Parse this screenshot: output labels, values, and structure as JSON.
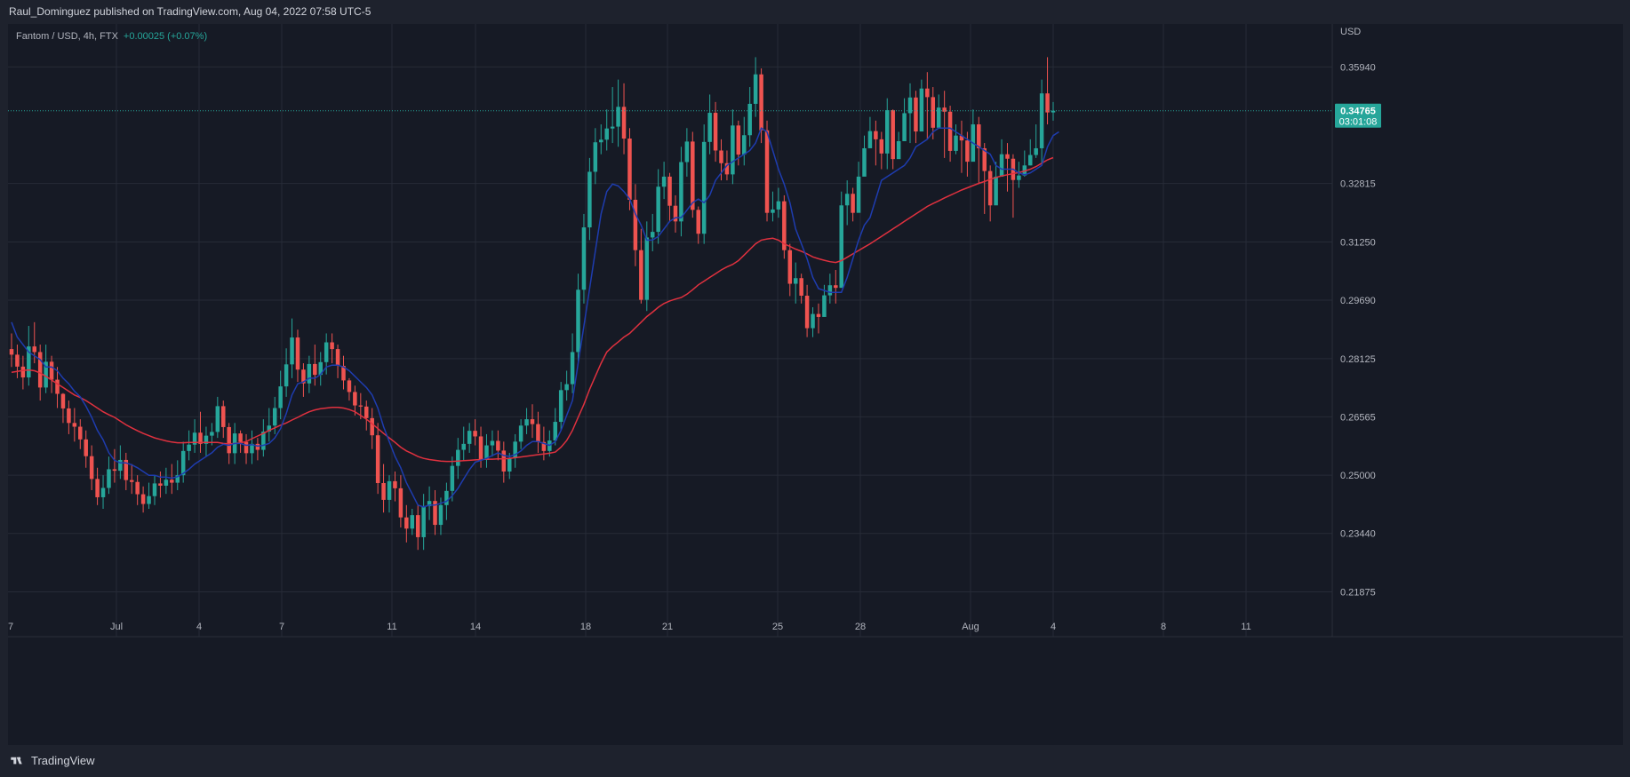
{
  "header": {
    "publisher_text": "Raul_Dominguez published on TradingView.com, Aug 04, 2022 07:58 UTC-5"
  },
  "legend": {
    "symbol": "Fantom / USD, 4h, FTX",
    "change": "+0.00025 (+0.07%)"
  },
  "footer": {
    "brand": "TradingView"
  },
  "colors": {
    "up": "#26a69a",
    "down": "#ef5350",
    "ema_fast": "#1e3caf",
    "ema_slow": "#e0313f",
    "background": "#161a25",
    "grid": "#262b37"
  },
  "chart_data": {
    "type": "candlestick",
    "currency_label": "USD",
    "ylim": [
      0.2134,
      0.3709
    ],
    "y_ticks": [
      "0.35940",
      "0.32815",
      "0.31250",
      "0.29690",
      "0.28125",
      "0.26565",
      "0.25000",
      "0.23440",
      "0.21875"
    ],
    "x_ticks": [
      "7",
      "Jul",
      "4",
      "7",
      "11",
      "14",
      "18",
      "21",
      "25",
      "28",
      "Aug",
      "4",
      "8",
      "11"
    ],
    "last_price": {
      "value": 0.34765,
      "label": "0.34765",
      "countdown": "03:01:08"
    },
    "candles": {
      "open": [
        0.2838,
        0.2823,
        0.2791,
        0.2762,
        0.2845,
        0.283,
        0.2735,
        0.2804,
        0.2756,
        0.2718,
        0.2679,
        0.264,
        0.263,
        0.2596,
        0.2551,
        0.249,
        0.2441,
        0.2466,
        0.2516,
        0.2512,
        0.2541,
        0.2487,
        0.2482,
        0.2449,
        0.2423,
        0.2444,
        0.2478,
        0.2472,
        0.2488,
        0.248,
        0.25,
        0.2565,
        0.2582,
        0.2614,
        0.2584,
        0.2606,
        0.2616,
        0.2685,
        0.2629,
        0.2559,
        0.2612,
        0.2589,
        0.2559,
        0.2584,
        0.2568,
        0.2617,
        0.2633,
        0.268,
        0.2738,
        0.2797,
        0.2869,
        0.2783,
        0.2746,
        0.2798,
        0.2769,
        0.2803,
        0.2856,
        0.2838,
        0.2793,
        0.2754,
        0.2723,
        0.2687,
        0.2684,
        0.2653,
        0.2607,
        0.2479,
        0.2434,
        0.2484,
        0.2465,
        0.2387,
        0.2357,
        0.2393,
        0.2334,
        0.2417,
        0.2431,
        0.2367,
        0.242,
        0.2458,
        0.2525,
        0.2568,
        0.2584,
        0.2619,
        0.2604,
        0.2541,
        0.258,
        0.2592,
        0.2566,
        0.251,
        0.2546,
        0.259,
        0.2633,
        0.265,
        0.2637,
        0.2589,
        0.2565,
        0.2593,
        0.2643,
        0.2728,
        0.2744,
        0.283,
        0.2997,
        0.3164,
        0.3313,
        0.3392,
        0.3399,
        0.3429,
        0.3434,
        0.3487,
        0.3402,
        0.3238,
        0.3103,
        0.297,
        0.3137,
        0.3152,
        0.3273,
        0.33,
        0.3222,
        0.318,
        0.3339,
        0.3394,
        0.3211,
        0.3147,
        0.3393,
        0.3471,
        0.337,
        0.3336,
        0.3306,
        0.3437,
        0.3359,
        0.3411,
        0.3495,
        0.3574,
        0.3424,
        0.3203,
        0.3212,
        0.3234,
        0.3103,
        0.3013,
        0.3028,
        0.2981,
        0.2894,
        0.2932,
        0.2924,
        0.2982,
        0.3009,
        0.3002,
        0.3223,
        0.3254,
        0.3203,
        0.33,
        0.3376,
        0.3422,
        0.34,
        0.3362,
        0.3478,
        0.3347,
        0.3395,
        0.347,
        0.3512,
        0.3421,
        0.3536,
        0.3513,
        0.3431,
        0.3485,
        0.3474,
        0.3369,
        0.341,
        0.3397,
        0.334,
        0.344,
        0.3376,
        0.3315,
        0.3223,
        0.33,
        0.336,
        0.3348,
        0.3291,
        0.3303,
        0.333,
        0.3358,
        0.3376,
        0.3523,
        0.3472
      ],
      "close": [
        0.2823,
        0.2791,
        0.2762,
        0.2845,
        0.283,
        0.2735,
        0.2804,
        0.2756,
        0.2718,
        0.2679,
        0.264,
        0.263,
        0.2596,
        0.2551,
        0.249,
        0.2441,
        0.2466,
        0.2516,
        0.2512,
        0.2541,
        0.2487,
        0.2482,
        0.2449,
        0.2423,
        0.2444,
        0.2478,
        0.2472,
        0.2488,
        0.248,
        0.25,
        0.2565,
        0.2582,
        0.2614,
        0.2584,
        0.2606,
        0.2616,
        0.2685,
        0.2629,
        0.2559,
        0.2612,
        0.2589,
        0.2559,
        0.2584,
        0.2568,
        0.2617,
        0.2633,
        0.268,
        0.2738,
        0.2797,
        0.2869,
        0.2783,
        0.2746,
        0.2798,
        0.2769,
        0.2803,
        0.2856,
        0.2838,
        0.2793,
        0.2754,
        0.2723,
        0.2687,
        0.2684,
        0.2653,
        0.2607,
        0.2479,
        0.2434,
        0.2484,
        0.2465,
        0.2387,
        0.2357,
        0.2393,
        0.2334,
        0.2417,
        0.2431,
        0.2367,
        0.242,
        0.2458,
        0.2525,
        0.2568,
        0.2584,
        0.2619,
        0.2604,
        0.2541,
        0.258,
        0.2592,
        0.2566,
        0.251,
        0.2546,
        0.259,
        0.2633,
        0.265,
        0.2637,
        0.2589,
        0.2565,
        0.2593,
        0.2643,
        0.2728,
        0.2744,
        0.283,
        0.2997,
        0.3164,
        0.3313,
        0.3392,
        0.3399,
        0.3429,
        0.3434,
        0.3487,
        0.3402,
        0.3238,
        0.3103,
        0.297,
        0.3137,
        0.3152,
        0.3273,
        0.33,
        0.3222,
        0.318,
        0.3339,
        0.3394,
        0.3211,
        0.3147,
        0.3393,
        0.3471,
        0.337,
        0.3336,
        0.3306,
        0.3437,
        0.3359,
        0.3411,
        0.3495,
        0.3574,
        0.3424,
        0.3203,
        0.3212,
        0.3234,
        0.3103,
        0.3013,
        0.3028,
        0.2981,
        0.2894,
        0.2932,
        0.2924,
        0.2982,
        0.3009,
        0.3002,
        0.3223,
        0.3254,
        0.3203,
        0.33,
        0.3376,
        0.3422,
        0.34,
        0.3362,
        0.3478,
        0.3347,
        0.3395,
        0.347,
        0.3512,
        0.3421,
        0.3536,
        0.3513,
        0.3431,
        0.3485,
        0.3474,
        0.3369,
        0.341,
        0.3397,
        0.334,
        0.344,
        0.3376,
        0.3315,
        0.3223,
        0.33,
        0.336,
        0.3348,
        0.3291,
        0.3303,
        0.333,
        0.3358,
        0.3376,
        0.3523,
        0.3472,
        0.34765
      ],
      "high": [
        0.288,
        0.285,
        0.282,
        0.29,
        0.291,
        0.285,
        0.285,
        0.282,
        0.279,
        0.272,
        0.27,
        0.268,
        0.265,
        0.262,
        0.258,
        0.252,
        0.25,
        0.255,
        0.257,
        0.258,
        0.256,
        0.253,
        0.25,
        0.247,
        0.248,
        0.25,
        0.251,
        0.252,
        0.253,
        0.254,
        0.259,
        0.262,
        0.265,
        0.267,
        0.263,
        0.264,
        0.271,
        0.27,
        0.264,
        0.264,
        0.262,
        0.261,
        0.262,
        0.26,
        0.265,
        0.268,
        0.271,
        0.278,
        0.284,
        0.292,
        0.289,
        0.28,
        0.282,
        0.285,
        0.283,
        0.288,
        0.288,
        0.285,
        0.282,
        0.276,
        0.274,
        0.272,
        0.27,
        0.268,
        0.264,
        0.253,
        0.25,
        0.251,
        0.25,
        0.242,
        0.241,
        0.242,
        0.245,
        0.247,
        0.246,
        0.244,
        0.248,
        0.255,
        0.26,
        0.263,
        0.264,
        0.265,
        0.263,
        0.261,
        0.262,
        0.262,
        0.259,
        0.256,
        0.261,
        0.265,
        0.268,
        0.269,
        0.267,
        0.263,
        0.262,
        0.268,
        0.275,
        0.278,
        0.288,
        0.304,
        0.32,
        0.335,
        0.343,
        0.344,
        0.348,
        0.354,
        0.356,
        0.355,
        0.343,
        0.328,
        0.316,
        0.318,
        0.32,
        0.332,
        0.334,
        0.331,
        0.325,
        0.338,
        0.343,
        0.342,
        0.322,
        0.344,
        0.352,
        0.35,
        0.34,
        0.337,
        0.348,
        0.345,
        0.346,
        0.354,
        0.362,
        0.359,
        0.345,
        0.326,
        0.327,
        0.325,
        0.312,
        0.307,
        0.304,
        0.301,
        0.295,
        0.296,
        0.301,
        0.304,
        0.305,
        0.326,
        0.329,
        0.327,
        0.334,
        0.341,
        0.346,
        0.345,
        0.342,
        0.351,
        0.348,
        0.342,
        0.351,
        0.355,
        0.353,
        0.356,
        0.358,
        0.354,
        0.352,
        0.353,
        0.349,
        0.344,
        0.345,
        0.342,
        0.348,
        0.346,
        0.339,
        0.333,
        0.334,
        0.34,
        0.339,
        0.336,
        0.334,
        0.337,
        0.34,
        0.344,
        0.356,
        0.362,
        0.35
      ],
      "low": [
        0.279,
        0.276,
        0.273,
        0.274,
        0.28,
        0.27,
        0.272,
        0.272,
        0.268,
        0.264,
        0.261,
        0.259,
        0.257,
        0.252,
        0.246,
        0.242,
        0.241,
        0.245,
        0.248,
        0.249,
        0.246,
        0.245,
        0.242,
        0.24,
        0.241,
        0.242,
        0.244,
        0.245,
        0.245,
        0.246,
        0.248,
        0.254,
        0.256,
        0.256,
        0.255,
        0.258,
        0.26,
        0.26,
        0.253,
        0.253,
        0.256,
        0.253,
        0.253,
        0.254,
        0.255,
        0.259,
        0.261,
        0.265,
        0.271,
        0.276,
        0.275,
        0.271,
        0.272,
        0.274,
        0.274,
        0.277,
        0.28,
        0.276,
        0.273,
        0.27,
        0.266,
        0.265,
        0.262,
        0.257,
        0.245,
        0.24,
        0.24,
        0.243,
        0.236,
        0.232,
        0.234,
        0.23,
        0.23,
        0.238,
        0.234,
        0.234,
        0.238,
        0.243,
        0.249,
        0.254,
        0.256,
        0.258,
        0.252,
        0.252,
        0.255,
        0.254,
        0.248,
        0.249,
        0.252,
        0.257,
        0.261,
        0.26,
        0.256,
        0.254,
        0.255,
        0.258,
        0.262,
        0.27,
        0.272,
        0.28,
        0.296,
        0.313,
        0.328,
        0.336,
        0.337,
        0.339,
        0.338,
        0.336,
        0.321,
        0.306,
        0.296,
        0.294,
        0.31,
        0.312,
        0.324,
        0.318,
        0.315,
        0.314,
        0.33,
        0.319,
        0.312,
        0.312,
        0.336,
        0.334,
        0.329,
        0.329,
        0.328,
        0.333,
        0.333,
        0.338,
        0.346,
        0.339,
        0.318,
        0.318,
        0.319,
        0.308,
        0.298,
        0.296,
        0.296,
        0.287,
        0.287,
        0.288,
        0.295,
        0.296,
        0.296,
        0.318,
        0.317,
        0.318,
        0.327,
        0.334,
        0.338,
        0.333,
        0.332,
        0.332,
        0.332,
        0.337,
        0.344,
        0.339,
        0.339,
        0.348,
        0.34,
        0.34,
        0.344,
        0.335,
        0.334,
        0.336,
        0.331,
        0.33,
        0.335,
        0.328,
        0.32,
        0.318,
        0.326,
        0.33,
        0.326,
        0.319,
        0.327,
        0.33,
        0.333,
        0.335,
        0.333,
        0.344,
        0.345
      ]
    },
    "ema_fast": [
      0.291,
      0.287,
      0.285,
      0.283,
      0.282,
      0.281,
      0.279,
      0.279,
      0.278,
      0.276,
      0.2745,
      0.2725,
      0.271,
      0.2685,
      0.2655,
      0.262,
      0.2595,
      0.256,
      0.254,
      0.2533,
      0.2533,
      0.2528,
      0.252,
      0.251,
      0.25,
      0.25,
      0.2495,
      0.2495,
      0.2492,
      0.2496,
      0.2505,
      0.2516,
      0.253,
      0.254,
      0.255,
      0.256,
      0.2575,
      0.2583,
      0.258,
      0.2585,
      0.2585,
      0.258,
      0.2582,
      0.2578,
      0.258,
      0.2585,
      0.26,
      0.2625,
      0.2665,
      0.2715,
      0.2745,
      0.275,
      0.276,
      0.276,
      0.277,
      0.279,
      0.2795,
      0.2795,
      0.279,
      0.278,
      0.2765,
      0.275,
      0.2735,
      0.2715,
      0.268,
      0.263,
      0.259,
      0.255,
      0.252,
      0.248,
      0.245,
      0.242,
      0.2415,
      0.242,
      0.242,
      0.2425,
      0.243,
      0.2445,
      0.2465,
      0.249,
      0.2515,
      0.2535,
      0.254,
      0.2545,
      0.2553,
      0.256,
      0.2553,
      0.255,
      0.2555,
      0.2565,
      0.258,
      0.259,
      0.259,
      0.2585,
      0.258,
      0.259,
      0.262,
      0.266,
      0.27,
      0.28,
      0.29,
      0.3,
      0.31,
      0.32,
      0.326,
      0.328,
      0.3275,
      0.326,
      0.324,
      0.32,
      0.317,
      0.313,
      0.313,
      0.314,
      0.316,
      0.318,
      0.319,
      0.319,
      0.321,
      0.323,
      0.324,
      0.323,
      0.325,
      0.329,
      0.331,
      0.333,
      0.334,
      0.335,
      0.336,
      0.337,
      0.339,
      0.343,
      0.342,
      0.337,
      0.332,
      0.328,
      0.323,
      0.316,
      0.312,
      0.308,
      0.303,
      0.3,
      0.2995,
      0.299,
      0.299,
      0.299,
      0.303,
      0.308,
      0.313,
      0.317,
      0.319,
      0.324,
      0.329,
      0.33,
      0.331,
      0.332,
      0.333,
      0.335,
      0.338,
      0.339,
      0.34,
      0.342,
      0.343,
      0.343,
      0.343,
      0.342,
      0.341,
      0.34,
      0.339,
      0.338,
      0.337,
      0.336,
      0.333,
      0.332,
      0.332,
      0.332,
      0.331,
      0.3305,
      0.331,
      0.332,
      0.333,
      0.338,
      0.341,
      0.342
    ],
    "ema_slow": [
      0.2776,
      0.2778,
      0.2781,
      0.2782,
      0.278,
      0.2774,
      0.2765,
      0.2755,
      0.2745,
      0.2735,
      0.2725,
      0.2715,
      0.2708,
      0.27,
      0.269,
      0.268,
      0.267,
      0.2662,
      0.2655,
      0.2645,
      0.2635,
      0.2627,
      0.2619,
      0.2612,
      0.2606,
      0.26,
      0.2596,
      0.2592,
      0.2589,
      0.2587,
      0.2587,
      0.2588,
      0.2588,
      0.2588,
      0.2588,
      0.2588,
      0.2588,
      0.2585,
      0.2584,
      0.2585,
      0.2587,
      0.259,
      0.2598,
      0.2605,
      0.2612,
      0.262,
      0.2627,
      0.2634,
      0.264,
      0.2648,
      0.2655,
      0.2663,
      0.267,
      0.2675,
      0.2678,
      0.268,
      0.2682,
      0.2682,
      0.268,
      0.2676,
      0.267,
      0.266,
      0.265,
      0.2638,
      0.2625,
      0.2612,
      0.26,
      0.2588,
      0.2575,
      0.2565,
      0.2558,
      0.255,
      0.2545,
      0.2542,
      0.254,
      0.2538,
      0.2537,
      0.2537,
      0.2538,
      0.2539,
      0.254,
      0.2541,
      0.2542,
      0.2543,
      0.2543,
      0.2544,
      0.2544,
      0.2545,
      0.2547,
      0.2549,
      0.2551,
      0.2553,
      0.2555,
      0.2557,
      0.2559,
      0.2562,
      0.2575,
      0.2593,
      0.262,
      0.2655,
      0.269,
      0.273,
      0.2765,
      0.28,
      0.283,
      0.2845,
      0.2857,
      0.287,
      0.288,
      0.2895,
      0.291,
      0.2925,
      0.2937,
      0.295,
      0.296,
      0.2967,
      0.2972,
      0.2976,
      0.2985,
      0.2997,
      0.301,
      0.302,
      0.303,
      0.304,
      0.305,
      0.3058,
      0.3065,
      0.3075,
      0.309,
      0.3105,
      0.312,
      0.313,
      0.3133,
      0.3135,
      0.313,
      0.312,
      0.3113,
      0.3106,
      0.31,
      0.3093,
      0.3085,
      0.308,
      0.3076,
      0.3072,
      0.307,
      0.3075,
      0.3084,
      0.3093,
      0.3102,
      0.3111,
      0.312,
      0.313,
      0.314,
      0.315,
      0.316,
      0.317,
      0.318,
      0.319,
      0.32,
      0.321,
      0.322,
      0.3228,
      0.3235,
      0.3243,
      0.325,
      0.3257,
      0.3264,
      0.327,
      0.3276,
      0.3282,
      0.3287,
      0.3293,
      0.3298,
      0.3302,
      0.3305,
      0.3308,
      0.3311,
      0.3315,
      0.332,
      0.3327,
      0.3336,
      0.3345,
      0.3351
    ]
  }
}
